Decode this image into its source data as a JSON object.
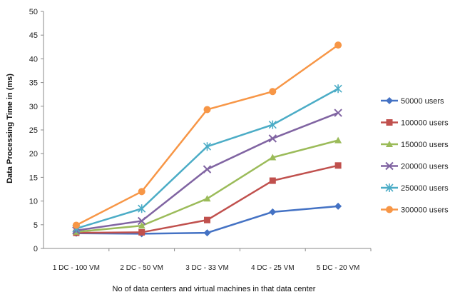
{
  "chart_data": {
    "type": "line",
    "title": "",
    "xlabel": "No of data centers and virtual machines in that data center",
    "ylabel": "Data Processing Time in (ms)",
    "ylim": [
      0,
      50
    ],
    "yticks": [
      0,
      5,
      10,
      15,
      20,
      25,
      30,
      35,
      40,
      45,
      50
    ],
    "categories": [
      "1 DC - 100 VM",
      "2 DC - 50 VM",
      "3 DC - 33 VM",
      "4 DC - 25 VM",
      "5 DC - 20 VM"
    ],
    "grid": false,
    "legend": "right",
    "series": [
      {
        "name": "50000 users",
        "color": "#4472c4",
        "marker": "diamond",
        "values": [
          3.2,
          3.1,
          3.3,
          7.7,
          8.9
        ]
      },
      {
        "name": "100000 users",
        "color": "#c0504d",
        "marker": "square",
        "values": [
          3.3,
          3.4,
          6.0,
          14.3,
          17.5
        ]
      },
      {
        "name": "150000 users",
        "color": "#9bbb59",
        "marker": "triangle",
        "values": [
          3.5,
          4.8,
          10.5,
          19.2,
          22.8
        ]
      },
      {
        "name": "200000 users",
        "color": "#8064a2",
        "marker": "x",
        "values": [
          3.8,
          5.8,
          16.7,
          23.2,
          28.6
        ]
      },
      {
        "name": "250000 users",
        "color": "#4bacc6",
        "marker": "star",
        "values": [
          4.2,
          8.4,
          21.5,
          26.1,
          33.7
        ]
      },
      {
        "name": "300000 users",
        "color": "#f79646",
        "marker": "circle",
        "values": [
          4.9,
          12.0,
          29.3,
          33.1,
          42.9
        ]
      }
    ]
  }
}
